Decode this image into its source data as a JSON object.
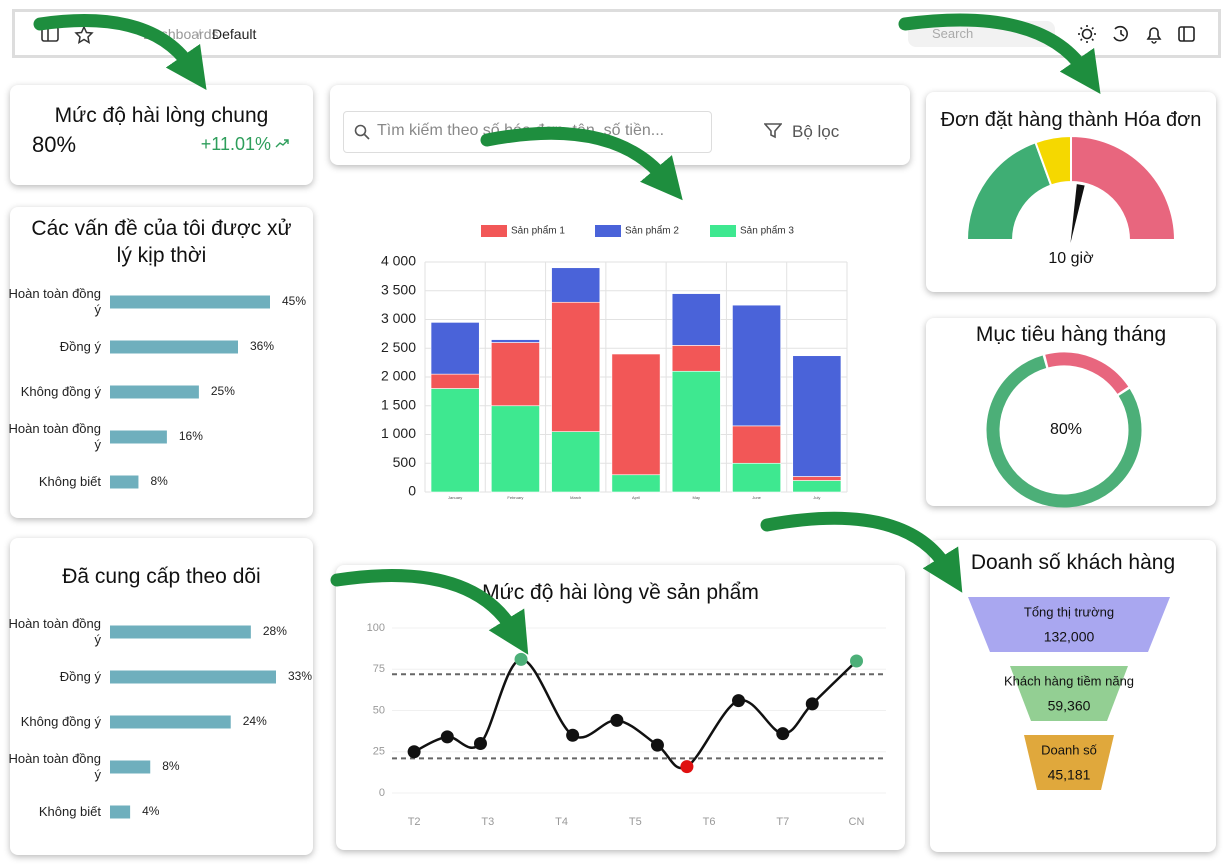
{
  "header": {
    "breadcrumb": [
      "Dashboards",
      "Default"
    ],
    "separator": "/",
    "search_placeholder": "Search"
  },
  "search": {
    "placeholder": "Tìm kiếm theo số hóa đơn, tên, số tiền...",
    "filter": "Bộ lọc"
  },
  "kpi": {
    "title": "Mức độ hài lòng chung",
    "value": "80%",
    "change": "+11.01%"
  },
  "chart_data": [
    {
      "type": "hbar",
      "title": "Các vấn đề của tôi được xử lý kịp thời",
      "categories": [
        "Hoàn toàn đồng ý",
        "Đồng ý",
        "Không đồng ý",
        "Hoàn toàn đồng ý",
        "Không biết"
      ],
      "values": [
        45,
        36,
        25,
        16,
        8
      ],
      "value_labels": [
        "45%",
        "36%",
        "25%",
        "16%",
        "8%"
      ],
      "color": "#6fafbd"
    },
    {
      "type": "hbar",
      "title": "Đã cung cấp theo dõi",
      "categories": [
        "Hoàn toàn đồng ý",
        "Đồng ý",
        "Không đồng ý",
        "Hoàn toàn đồng ý",
        "Không biết"
      ],
      "values": [
        28,
        33,
        24,
        8,
        4
      ],
      "value_labels": [
        "28%",
        "33%",
        "24%",
        "8%",
        "4%"
      ],
      "color": "#6fafbd"
    },
    {
      "type": "stacked_bar",
      "categories": [
        "January",
        "February",
        "March",
        "April",
        "May",
        "June",
        "July"
      ],
      "series": [
        {
          "name": "Sản phẩm 1",
          "color": "#f25757",
          "values": [
            250,
            1100,
            2250,
            2100,
            450,
            650,
            70
          ]
        },
        {
          "name": "Sản phẩm 2",
          "color": "#4a63d9",
          "values": [
            900,
            50,
            600,
            0,
            900,
            2100,
            2100
          ]
        },
        {
          "name": "Sản phẩm 3",
          "color": "#3ee890",
          "values": [
            1800,
            1500,
            1050,
            300,
            2100,
            500,
            200
          ]
        }
      ],
      "ylim": [
        0,
        4000
      ],
      "yticks": [
        0,
        500,
        {
          "value": 1000,
          "label": "1 000"
        },
        {
          "value": 1500,
          "label": "1 500"
        },
        {
          "value": 2000,
          "label": "2 000"
        },
        {
          "value": 2500,
          "label": "2 500"
        },
        {
          "value": 3000,
          "label": "3 000"
        },
        {
          "value": 3500,
          "label": "3 500"
        },
        {
          "value": 4000,
          "label": "4 000"
        }
      ],
      "grid": true
    },
    {
      "type": "line",
      "title": "Mức độ hài lòng về sản phẩm",
      "x": [
        0,
        0.45,
        0.9,
        1.45,
        2.15,
        2.75,
        3.3,
        3.7,
        4.4,
        5,
        5.4,
        6
      ],
      "values": [
        25,
        34,
        30,
        81,
        35,
        44,
        29,
        16,
        56,
        36,
        54,
        80
      ],
      "xlim": [
        -0.3,
        6.4
      ],
      "xticks": [
        {
          "value": 0,
          "label": "T2"
        },
        {
          "value": 1,
          "label": "T3"
        },
        {
          "value": 2,
          "label": "T4"
        },
        {
          "value": 3,
          "label": "T5"
        },
        {
          "value": 4,
          "label": "T6"
        },
        {
          "value": 5,
          "label": "T7"
        },
        {
          "value": 6,
          "label": "CN"
        }
      ],
      "ylim": [
        0,
        100
      ],
      "yticks": [
        0,
        25,
        50,
        75,
        100
      ],
      "reference_lines": [
        72,
        21
      ],
      "color": "#111111",
      "high_color": "#4caf78",
      "low_color": "#e01010",
      "grid": true
    },
    {
      "type": "gauge",
      "title": "Đơn đặt hàng thành Hóa đơn",
      "value": 10,
      "value_label": "10 giờ",
      "lim": [
        0,
        18
      ],
      "bands": [
        {
          "to": 7,
          "color": "#3fae74"
        },
        {
          "to": 9,
          "color": "#f5d800"
        },
        {
          "to": 18,
          "color": "#e8667e"
        }
      ]
    },
    {
      "type": "donut",
      "title": "Mục tiêu hàng tháng",
      "value": 80,
      "value_label": "80%",
      "colors": [
        "#4caf78",
        "#e8667e"
      ]
    },
    {
      "type": "funnel",
      "title": "Doanh số khách hàng",
      "categories": [
        "Tổng thị trường",
        "Khách hàng tiềm năng",
        "Doanh số"
      ],
      "values": [
        132000,
        59360,
        45181
      ],
      "value_labels": [
        "132,000",
        "59,360",
        "45,181"
      ],
      "colors": [
        "#a9a7f0",
        "#93cf93",
        "#e0a83c"
      ]
    }
  ]
}
